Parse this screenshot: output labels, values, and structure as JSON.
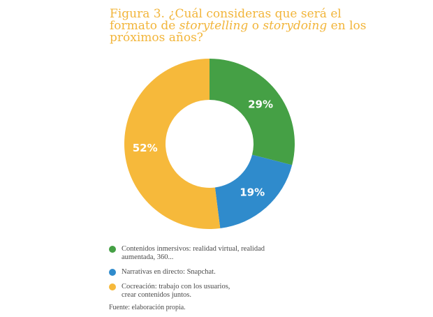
{
  "title": {
    "line1": "Figura 3. ¿Cuál consideras que será el",
    "line2_pre": "formato de ",
    "line2_em1": "storytelling",
    "line2_mid": " o ",
    "line2_em2": "storydoing",
    "line2_post": " en los",
    "line3": "próximos años?"
  },
  "source": "Fuente: elaboración propia.",
  "chart_data": {
    "type": "pie",
    "style": "donut",
    "slices": [
      {
        "label": "Contenidos inmersivos: realidad virtual, realidad aumentada, 360...",
        "value": 29,
        "display": "29%",
        "color": "#45a045"
      },
      {
        "label": "Narrativas en directo: Snapchat.",
        "value": 19,
        "display": "19%",
        "color": "#2f8bcc"
      },
      {
        "label": "Cocreación: trabajo con los usuarios, crear contenidos juntos.",
        "value": 52,
        "display": "52%",
        "color": "#f6b93b"
      }
    ],
    "legend": {
      "position": "bottom-left",
      "items": [
        {
          "line1": "Contenidos inmersivos: realidad virtual, realidad",
          "line2": "aumentada, 360...",
          "color": "#45a045"
        },
        {
          "line1": "Narrativas en directo: Snapchat.",
          "line2": "",
          "color": "#2f8bcc"
        },
        {
          "line1": "Cocreación: trabajo con los usuarios,",
          "line2": "crear contenidos juntos.",
          "color": "#f6b93b"
        }
      ]
    }
  }
}
